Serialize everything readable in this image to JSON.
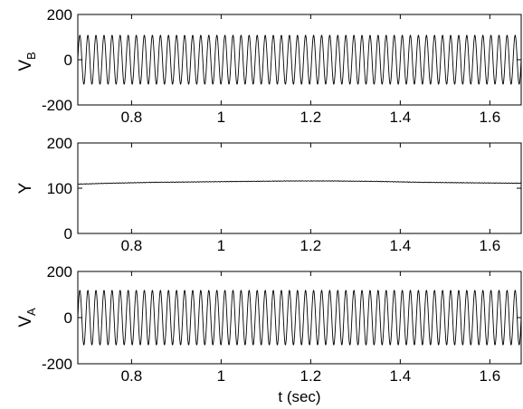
{
  "chart_data": [
    {
      "type": "line",
      "ylabel_main": "V",
      "ylabel_sub": "B",
      "xlim": [
        0.68,
        1.67
      ],
      "ylim": [
        -200,
        200
      ],
      "xticks": [
        "0.8",
        "1",
        "1.2",
        "1.4",
        "1.6"
      ],
      "xtick_values": [
        0.8,
        1.0,
        1.2,
        1.4,
        1.6
      ],
      "yticks": [
        "-200",
        "0",
        "200"
      ],
      "ytick_values": [
        -200,
        0,
        200
      ],
      "series": [
        {
          "x_start": 0.68,
          "x_end": 1.67,
          "amplitude": 108,
          "cycles": 55,
          "offset": 0
        }
      ]
    },
    {
      "type": "line",
      "ylabel_main": "Y",
      "ylabel_sub": "",
      "xlim": [
        0.68,
        1.67
      ],
      "ylim": [
        0,
        200
      ],
      "xticks": [
        "0.8",
        "1",
        "1.2",
        "1.4",
        "1.6"
      ],
      "xtick_values": [
        0.8,
        1.0,
        1.2,
        1.4,
        1.6
      ],
      "yticks": [
        "0",
        "100",
        "200"
      ],
      "ytick_values": [
        0,
        100,
        200
      ],
      "series": [
        {
          "x": [
            0.68,
            0.75,
            0.85,
            0.95,
            1.05,
            1.15,
            1.25,
            1.35,
            1.45,
            1.55,
            1.67
          ],
          "y": [
            109,
            111,
            113,
            114,
            115,
            116,
            116,
            115,
            113,
            112,
            111
          ]
        }
      ]
    },
    {
      "type": "line",
      "ylabel_main": "V",
      "ylabel_sub": "A",
      "xlabel": "t (sec)",
      "xlim": [
        0.68,
        1.67
      ],
      "ylim": [
        -200,
        200
      ],
      "xticks": [
        "0.8",
        "1",
        "1.2",
        "1.4",
        "1.6"
      ],
      "xtick_values": [
        0.8,
        1.0,
        1.2,
        1.4,
        1.6
      ],
      "yticks": [
        "-200",
        "0",
        "200"
      ],
      "ytick_values": [
        -200,
        0,
        200
      ],
      "series": [
        {
          "x_start": 0.68,
          "x_end": 1.67,
          "amplitude": 118,
          "cycles": 55,
          "offset": 0
        }
      ]
    }
  ]
}
